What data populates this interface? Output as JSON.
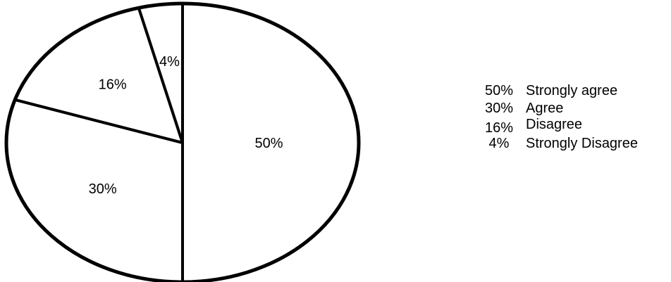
{
  "chart_data": {
    "type": "pie",
    "categories": [
      "Strongly agree",
      "Agree",
      "Disagree",
      "Strongly Disagree"
    ],
    "values": [
      50,
      30,
      16,
      4
    ],
    "slice_labels": [
      "50%",
      "30%",
      "16%",
      "4%"
    ],
    "legend": [
      {
        "value": "50%",
        "label": "Strongly agree"
      },
      {
        "value": "30%",
        "label": "Agree"
      },
      {
        "value": "16%",
        "label": "Disagree"
      },
      {
        "value": "4%",
        "label": "Strongly Disagree"
      }
    ],
    "legend_position": "right",
    "fill_color": "#ffffff",
    "stroke_color": "#000000"
  }
}
